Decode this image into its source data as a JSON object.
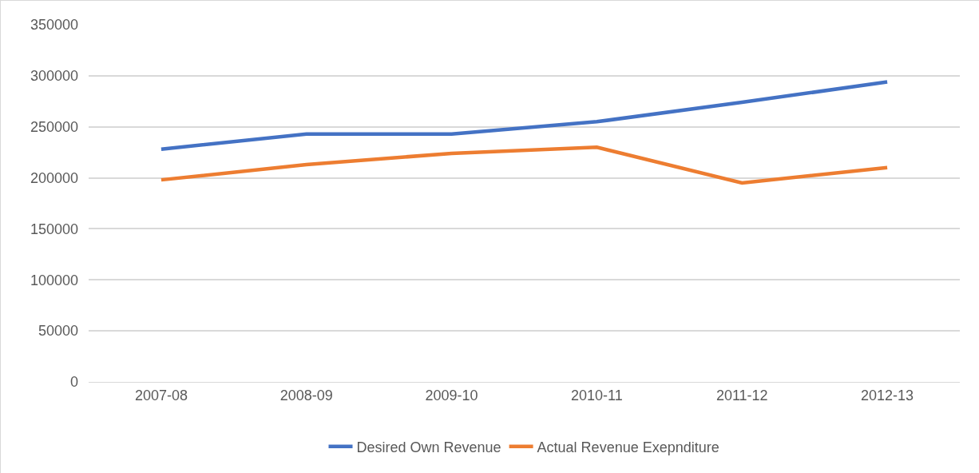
{
  "chart_data": {
    "type": "line",
    "categories": [
      "2007-08",
      "2008-09",
      "2009-10",
      "2010-11",
      "2011-12",
      "2012-13"
    ],
    "series": [
      {
        "name": "Desired Own Revenue",
        "color": "#4472c4",
        "values": [
          228000,
          243000,
          243000,
          255000,
          274000,
          294000
        ]
      },
      {
        "name": "Actual Revenue Exepnditure",
        "color": "#ed7d31",
        "values": [
          198000,
          213000,
          224000,
          230000,
          195000,
          210000
        ]
      }
    ],
    "ylim": [
      0,
      350000
    ],
    "yticks": [
      0,
      50000,
      100000,
      150000,
      200000,
      250000,
      300000,
      350000
    ],
    "grid": "y",
    "legend": "bottom",
    "marker": "none",
    "line_style": "solid"
  }
}
